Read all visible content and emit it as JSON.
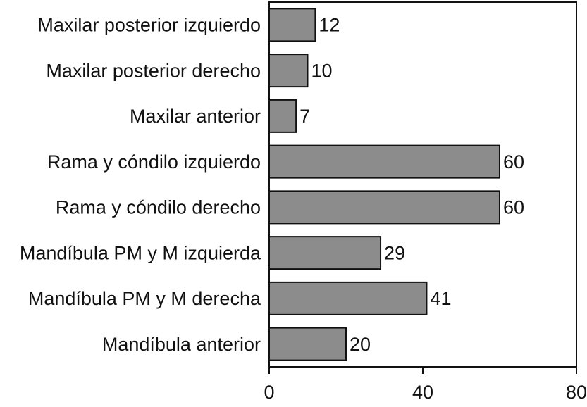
{
  "chart_data": {
    "type": "bar",
    "orientation": "horizontal",
    "categories": [
      "Maxilar posterior izquierdo",
      "Maxilar posterior derecho",
      "Maxilar anterior",
      "Rama y cóndilo izquierdo",
      "Rama y cóndilo derecho",
      "Mandíbula PM y M izquierda",
      "Mandíbula PM y M derecha",
      "Mandíbula anterior"
    ],
    "values": [
      12,
      10,
      7,
      60,
      60,
      29,
      41,
      20
    ],
    "color": "#8c8c8c",
    "xlim": [
      0,
      80
    ],
    "xticks": [
      0,
      40,
      80
    ]
  }
}
